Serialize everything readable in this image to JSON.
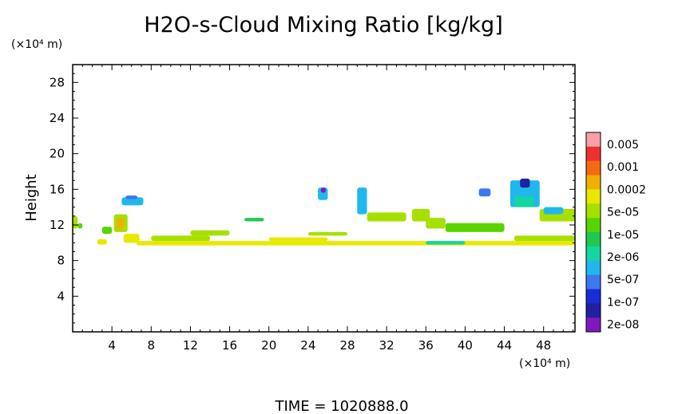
{
  "chart_data": {
    "type": "heatmap",
    "title": "H2O-s-Cloud Mixing Ratio [kg/kg]",
    "ylabel": "Height",
    "x_unit_label": "(×10⁴ m)",
    "y_unit_label": "(×10⁴ m)",
    "time_label": "TIME = 1020888.0",
    "xlim": [
      0,
      51.2
    ],
    "ylim": [
      0,
      30
    ],
    "x_ticks": [
      4,
      8,
      12,
      16,
      20,
      24,
      28,
      32,
      36,
      40,
      44,
      48
    ],
    "y_ticks": [
      4,
      8,
      12,
      16,
      20,
      24,
      28
    ],
    "colorbar": {
      "labels": [
        "0.005",
        "0.001",
        "0.0002",
        "5e-05",
        "1e-05",
        "2e-06",
        "5e-07",
        "1e-07",
        "2e-08"
      ],
      "colors": [
        "#f7a0a8",
        "#f03030",
        "#f56a10",
        "#f0b000",
        "#e8e800",
        "#a6e000",
        "#58d400",
        "#20c850",
        "#14d6a0",
        "#20b8ec",
        "#3c78f0",
        "#1a2cd8",
        "#2020a0",
        "#8018c0"
      ]
    },
    "cloud_regions": [
      {
        "x0": 0.0,
        "x1": 0.5,
        "y0": 11.6,
        "y1": 13.0,
        "color": "#a6e000"
      },
      {
        "x0": 0.5,
        "x1": 1.0,
        "y0": 11.6,
        "y1": 12.2,
        "color": "#58d400"
      },
      {
        "x0": 2.5,
        "x1": 3.5,
        "y0": 9.8,
        "y1": 10.4,
        "color": "#e8e800"
      },
      {
        "x0": 3.0,
        "x1": 4.0,
        "y0": 11.0,
        "y1": 11.8,
        "color": "#58d400"
      },
      {
        "x0": 4.2,
        "x1": 5.6,
        "y0": 11.2,
        "y1": 13.2,
        "color": "#a6e000"
      },
      {
        "x0": 4.5,
        "x1": 5.2,
        "y0": 11.5,
        "y1": 12.8,
        "color": "#f0b000"
      },
      {
        "x0": 5.2,
        "x1": 6.8,
        "y0": 10.0,
        "y1": 11.0,
        "color": "#e8e800"
      },
      {
        "x0": 5.0,
        "x1": 7.2,
        "y0": 14.2,
        "y1": 15.1,
        "color": "#20b8ec"
      },
      {
        "x0": 5.4,
        "x1": 6.6,
        "y0": 14.9,
        "y1": 15.3,
        "color": "#3c78f0"
      },
      {
        "x0": 6.5,
        "x1": 52.0,
        "y0": 9.7,
        "y1": 10.2,
        "color": "#e8e800"
      },
      {
        "x0": 8.0,
        "x1": 14.0,
        "y0": 10.2,
        "y1": 10.8,
        "color": "#a6e000"
      },
      {
        "x0": 12.0,
        "x1": 16.0,
        "y0": 10.8,
        "y1": 11.4,
        "color": "#a6e000"
      },
      {
        "x0": 20.0,
        "x1": 26.0,
        "y0": 10.2,
        "y1": 10.6,
        "color": "#e8e800"
      },
      {
        "x0": 24.0,
        "x1": 28.0,
        "y0": 10.8,
        "y1": 11.2,
        "color": "#a6e000"
      },
      {
        "x0": 17.5,
        "x1": 19.5,
        "y0": 12.4,
        "y1": 12.8,
        "color": "#20c850"
      },
      {
        "x0": 25.0,
        "x1": 26.0,
        "y0": 14.8,
        "y1": 16.2,
        "color": "#20b8ec"
      },
      {
        "x0": 25.3,
        "x1": 25.8,
        "y0": 15.6,
        "y1": 16.2,
        "color": "#8018c0"
      },
      {
        "x0": 29.0,
        "x1": 30.0,
        "y0": 13.2,
        "y1": 16.2,
        "color": "#20b8ec"
      },
      {
        "x0": 30.0,
        "x1": 34.0,
        "y0": 12.4,
        "y1": 13.4,
        "color": "#a6e000"
      },
      {
        "x0": 34.6,
        "x1": 36.4,
        "y0": 12.4,
        "y1": 13.8,
        "color": "#a6e000"
      },
      {
        "x0": 36.0,
        "x1": 38.0,
        "y0": 11.6,
        "y1": 12.8,
        "color": "#a6e000"
      },
      {
        "x0": 38.0,
        "x1": 44.0,
        "y0": 11.2,
        "y1": 12.2,
        "color": "#58d400"
      },
      {
        "x0": 36.0,
        "x1": 40.0,
        "y0": 9.8,
        "y1": 10.2,
        "color": "#14d6a0"
      },
      {
        "x0": 41.4,
        "x1": 42.6,
        "y0": 15.2,
        "y1": 16.1,
        "color": "#3c78f0"
      },
      {
        "x0": 44.6,
        "x1": 47.6,
        "y0": 14.0,
        "y1": 17.0,
        "color": "#20b8ec"
      },
      {
        "x0": 45.6,
        "x1": 46.6,
        "y0": 16.2,
        "y1": 17.2,
        "color": "#2020a0"
      },
      {
        "x0": 45.0,
        "x1": 47.0,
        "y0": 14.0,
        "y1": 15.2,
        "color": "#14d6a0"
      },
      {
        "x0": 47.6,
        "x1": 51.2,
        "y0": 12.4,
        "y1": 13.8,
        "color": "#a6e000"
      },
      {
        "x0": 48.0,
        "x1": 50.0,
        "y0": 13.2,
        "y1": 14.0,
        "color": "#20b8ec"
      },
      {
        "x0": 45.0,
        "x1": 51.2,
        "y0": 10.2,
        "y1": 10.8,
        "color": "#a6e000"
      }
    ]
  }
}
